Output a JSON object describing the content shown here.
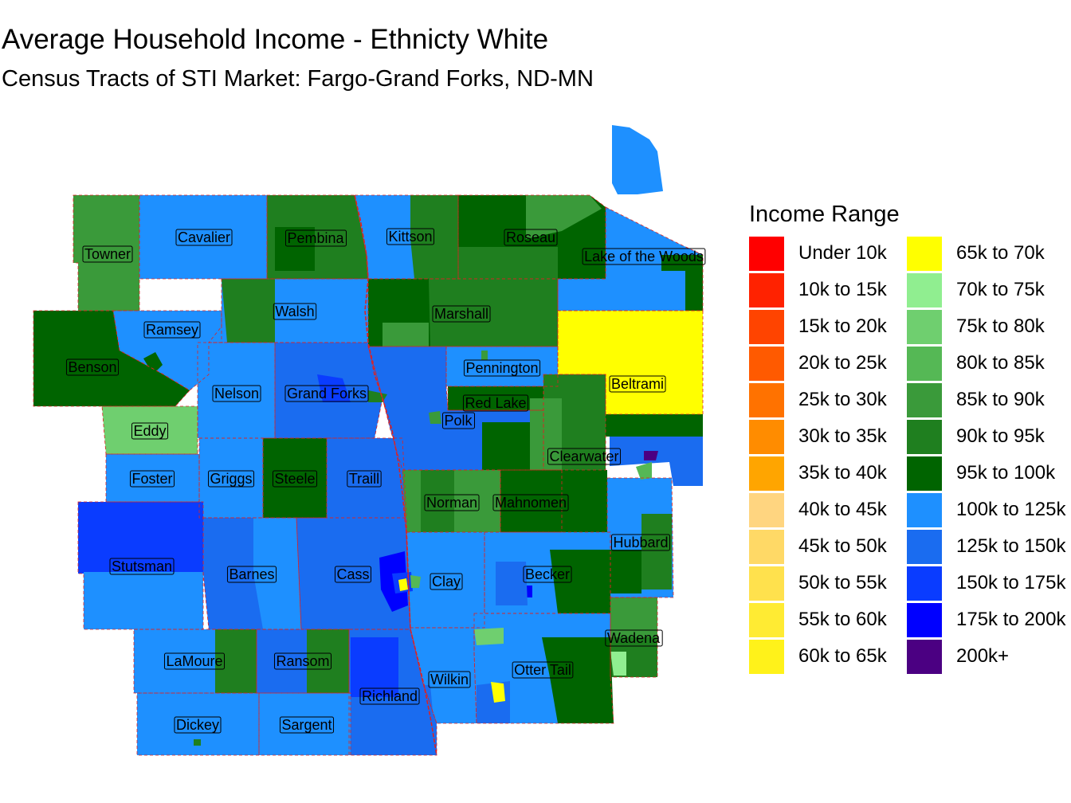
{
  "title": "Average Household Income - Ethnicty White",
  "subtitle": "Census Tracts of STI Market: Fargo-Grand Forks, ND-MN",
  "legend": {
    "title": "Income Range",
    "items": [
      {
        "label": "Under 10k",
        "color": "#ff0000"
      },
      {
        "label": "10k to 15k",
        "color": "#ff2200"
      },
      {
        "label": "15k to 20k",
        "color": "#ff4400"
      },
      {
        "label": "20k to 25k",
        "color": "#ff5a00"
      },
      {
        "label": "25k to 30k",
        "color": "#ff7200"
      },
      {
        "label": "30k to 35k",
        "color": "#ff8c00"
      },
      {
        "label": "35k to 40k",
        "color": "#ffa500"
      },
      {
        "label": "40k to 45k",
        "color": "#ffd580"
      },
      {
        "label": "45k to 50k",
        "color": "#ffd966"
      },
      {
        "label": "50k to 55k",
        "color": "#ffe14d"
      },
      {
        "label": "55k to 60k",
        "color": "#ffeb33"
      },
      {
        "label": "60k to 65k",
        "color": "#fff21a"
      },
      {
        "label": "65k to 70k",
        "color": "#ffff00"
      },
      {
        "label": "70k to 75k",
        "color": "#90ee90"
      },
      {
        "label": "75k to 80k",
        "color": "#6fcf6f"
      },
      {
        "label": "80k to 85k",
        "color": "#55b855"
      },
      {
        "label": "85k to 90k",
        "color": "#3a9a3a"
      },
      {
        "label": "90k to 95k",
        "color": "#1f7f1f"
      },
      {
        "label": "95k to 100k",
        "color": "#006400"
      },
      {
        "label": "100k to 125k",
        "color": "#1e90ff"
      },
      {
        "label": "125k to 150k",
        "color": "#1a6cf0"
      },
      {
        "label": "150k to 175k",
        "color": "#0a3cff"
      },
      {
        "label": "175k to 200k",
        "color": "#0000ff"
      },
      {
        "label": "200k+",
        "color": "#4b0082"
      }
    ]
  },
  "counties": [
    {
      "name": "Cavalier",
      "color": "#1e90ff"
    },
    {
      "name": "Pembina",
      "color": "#1f7f1f"
    },
    {
      "name": "Kittson",
      "color": "#1e90ff"
    },
    {
      "name": "Roseau",
      "color": "#006400"
    },
    {
      "name": "Towner",
      "color": "#3a9a3a"
    },
    {
      "name": "Lake of the Woods",
      "color": "#1e90ff"
    },
    {
      "name": "Walsh",
      "color": "#1e90ff"
    },
    {
      "name": "Marshall",
      "color": "#1f7f1f"
    },
    {
      "name": "Ramsey",
      "color": "#1e90ff"
    },
    {
      "name": "Benson",
      "color": "#006400"
    },
    {
      "name": "Pennington",
      "color": "#1e90ff"
    },
    {
      "name": "Beltrami",
      "color": "#ffff00"
    },
    {
      "name": "Nelson",
      "color": "#1e90ff"
    },
    {
      "name": "Grand Forks",
      "color": "#1a6cf0"
    },
    {
      "name": "Red Lake",
      "color": "#006400"
    },
    {
      "name": "Polk",
      "color": "#1a6cf0"
    },
    {
      "name": "Eddy",
      "color": "#6fcf6f"
    },
    {
      "name": "Clearwater",
      "color": "#1f7f1f"
    },
    {
      "name": "Foster",
      "color": "#1e90ff"
    },
    {
      "name": "Griggs",
      "color": "#1e90ff"
    },
    {
      "name": "Steele",
      "color": "#006400"
    },
    {
      "name": "Traill",
      "color": "#1a6cf0"
    },
    {
      "name": "Norman",
      "color": "#3a9a3a"
    },
    {
      "name": "Mahnomen",
      "color": "#006400"
    },
    {
      "name": "Hubbard",
      "color": "#1e90ff"
    },
    {
      "name": "Stutsman",
      "color": "#0a3cff"
    },
    {
      "name": "Barnes",
      "color": "#1a6cf0"
    },
    {
      "name": "Cass",
      "color": "#1a6cf0"
    },
    {
      "name": "Clay",
      "color": "#1e90ff"
    },
    {
      "name": "Becker",
      "color": "#1e90ff"
    },
    {
      "name": "Wadena",
      "color": "#3a9a3a"
    },
    {
      "name": "LaMoure",
      "color": "#1e90ff"
    },
    {
      "name": "Ransom",
      "color": "#1a6cf0"
    },
    {
      "name": "Otter Tail",
      "color": "#1e90ff"
    },
    {
      "name": "Wilkin",
      "color": "#1e90ff"
    },
    {
      "name": "Richland",
      "color": "#1a6cf0"
    },
    {
      "name": "Dickey",
      "color": "#1e90ff"
    },
    {
      "name": "Sargent",
      "color": "#1e90ff"
    }
  ]
}
